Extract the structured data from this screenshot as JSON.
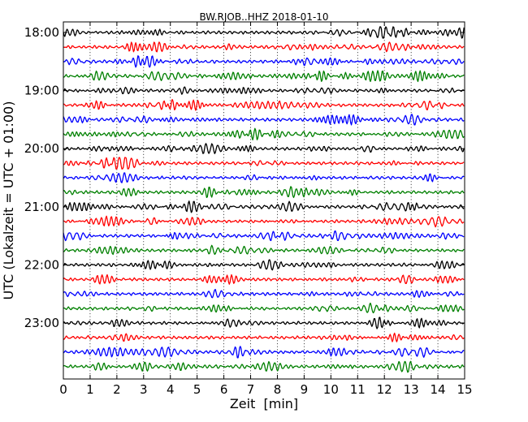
{
  "chart_data": {
    "type": "line",
    "title": "BW.RJOB..HHZ 2018-01-10",
    "xlabel": "Zeit  [min]",
    "ylabel": "UTC (Lokalzeit = UTC + 01:00)",
    "xlim": [
      0,
      15
    ],
    "x_ticks": [
      "0",
      "1",
      "2",
      "3",
      "4",
      "5",
      "6",
      "7",
      "8",
      "9",
      "10",
      "11",
      "12",
      "13",
      "14",
      "15"
    ],
    "y_ticks": [
      "18:00",
      "19:00",
      "20:00",
      "21:00",
      "22:00",
      "23:00"
    ],
    "y_tick_rows": [
      0,
      4,
      8,
      12,
      16,
      20
    ],
    "traces_per_hour": 4,
    "minutes_per_trace": 15,
    "trace_count": 24,
    "grid": "vertical dotted lines at each minute",
    "trace_colors": [
      "#000000",
      "#ff0000",
      "#0000ff",
      "#008000"
    ]
  }
}
